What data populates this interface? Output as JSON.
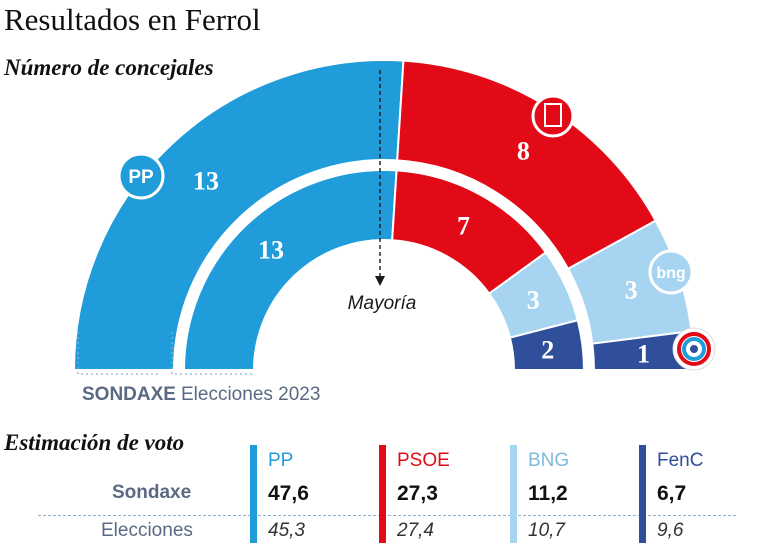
{
  "header": {
    "title": "Resultados en Ferrol",
    "subtitle": "Número de concejales"
  },
  "colors": {
    "PP": "#1f9cd9",
    "PSOE": "#e20a17",
    "BNG": "#a7d5f1",
    "FenC": "#2f4f9b"
  },
  "chart_data": [
    {
      "type": "hemicycle",
      "title": "Número de concejales",
      "majority_label": "Mayoría",
      "rings": [
        {
          "label": "SONDAXE",
          "seats": [
            {
              "party": "PP",
              "value": 13
            },
            {
              "party": "PSOE",
              "value": 8
            },
            {
              "party": "BNG",
              "value": 3
            },
            {
              "party": "FenC",
              "value": 1
            }
          ]
        },
        {
          "label": "Elecciones 2023",
          "seats": [
            {
              "party": "PP",
              "value": 13
            },
            {
              "party": "PSOE",
              "value": 7
            },
            {
              "party": "BNG",
              "value": 3
            },
            {
              "party": "FenC",
              "value": 2
            }
          ]
        }
      ],
      "logos": [
        {
          "party": "PP",
          "text": "PP",
          "icon": "pp-logo-icon"
        },
        {
          "party": "PSOE",
          "text": "",
          "icon": "psoe-logo-icon"
        },
        {
          "party": "BNG",
          "text": "bng",
          "icon": "bng-logo-icon"
        },
        {
          "party": "FenC",
          "text": "",
          "icon": "fenc-logo-icon"
        }
      ]
    },
    {
      "type": "table",
      "title": "Estimación de voto",
      "columns": [
        "PP",
        "PSOE",
        "BNG",
        "FenC"
      ],
      "rows": [
        {
          "label": "Sondaxe",
          "values": [
            "47,6",
            "27,3",
            "11,2",
            "6,7"
          ]
        },
        {
          "label": "Elecciones",
          "values": [
            "45,3",
            "27,4",
            "10,7",
            "9,6"
          ]
        }
      ]
    }
  ]
}
